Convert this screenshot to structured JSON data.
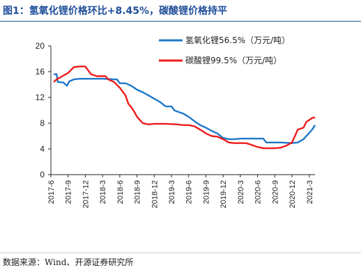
{
  "header": {
    "title": "图1：氢氧化锂价格环比+8.45%，碳酸锂价格持平"
  },
  "footer": {
    "source": "数据来源：Wind、开源证券研究所"
  },
  "chart_data": {
    "type": "line",
    "title": "",
    "xlabel": "",
    "ylabel": "",
    "ylim": [
      0,
      20
    ],
    "yticks": [
      0,
      4,
      8,
      12,
      16,
      20
    ],
    "xticks": [
      "2017-6",
      "2017-9",
      "2017-12",
      "2018-3",
      "2018-6",
      "2018-9",
      "2018-12",
      "2019-3",
      "2019-6",
      "2019-9",
      "2019-12",
      "2020-3",
      "2020-6",
      "2020-9",
      "2020-12",
      "2021-3"
    ],
    "xlim_months": [
      0,
      46
    ],
    "grid": false,
    "legend_position": "top-right",
    "series": [
      {
        "name": "氢氧化锂56.5%（万元/吨）",
        "color": "#1f78c8",
        "points": [
          [
            0.5,
            15.6
          ],
          [
            1.0,
            15.6
          ],
          [
            1.2,
            14.4
          ],
          [
            2.2,
            14.3
          ],
          [
            2.8,
            13.8
          ],
          [
            3.2,
            14.5
          ],
          [
            4.0,
            14.8
          ],
          [
            5.0,
            14.9
          ],
          [
            7.0,
            14.9
          ],
          [
            9.0,
            14.9
          ],
          [
            11.0,
            14.8
          ],
          [
            11.5,
            14.8
          ],
          [
            12.0,
            14.2
          ],
          [
            13.0,
            14.2
          ],
          [
            14.0,
            13.8
          ],
          [
            15.0,
            13.2
          ],
          [
            16.0,
            12.8
          ],
          [
            17.0,
            12.3
          ],
          [
            18.0,
            11.8
          ],
          [
            19.0,
            11.3
          ],
          [
            20.0,
            10.6
          ],
          [
            21.0,
            10.6
          ],
          [
            21.5,
            10.0
          ],
          [
            22.0,
            9.8
          ],
          [
            23.0,
            9.5
          ],
          [
            24.0,
            9.0
          ],
          [
            25.0,
            8.3
          ],
          [
            26.0,
            7.7
          ],
          [
            27.0,
            7.3
          ],
          [
            28.0,
            6.8
          ],
          [
            29.0,
            6.4
          ],
          [
            30.0,
            5.7
          ],
          [
            31.0,
            5.5
          ],
          [
            32.0,
            5.5
          ],
          [
            33.0,
            5.6
          ],
          [
            37.0,
            5.6
          ],
          [
            37.5,
            5.0
          ],
          [
            40.0,
            5.0
          ],
          [
            42.0,
            4.9
          ],
          [
            43.0,
            5.0
          ],
          [
            44.0,
            5.5
          ],
          [
            45.0,
            6.5
          ],
          [
            45.5,
            7.0
          ],
          [
            46.0,
            7.7
          ]
        ]
      },
      {
        "name": "碳酸锂99.5%（万元/吨）",
        "color": "#ee1c1c",
        "points": [
          [
            0.5,
            14.4
          ],
          [
            1.0,
            14.8
          ],
          [
            2.0,
            15.3
          ],
          [
            3.0,
            15.8
          ],
          [
            4.0,
            16.7
          ],
          [
            5.0,
            16.8
          ],
          [
            6.0,
            16.8
          ],
          [
            6.5,
            16.2
          ],
          [
            7.0,
            15.6
          ],
          [
            8.0,
            15.3
          ],
          [
            9.0,
            15.3
          ],
          [
            9.5,
            15.3
          ],
          [
            10.0,
            14.8
          ],
          [
            11.0,
            14.4
          ],
          [
            12.0,
            13.5
          ],
          [
            13.0,
            12.3
          ],
          [
            13.5,
            11.0
          ],
          [
            14.0,
            10.5
          ],
          [
            14.5,
            9.8
          ],
          [
            15.0,
            9.0
          ],
          [
            15.5,
            8.5
          ],
          [
            16.0,
            8.0
          ],
          [
            17.0,
            7.8
          ],
          [
            18.0,
            7.9
          ],
          [
            20.0,
            7.9
          ],
          [
            22.0,
            7.8
          ],
          [
            23.0,
            7.7
          ],
          [
            24.0,
            7.7
          ],
          [
            25.0,
            7.5
          ],
          [
            26.0,
            7.0
          ],
          [
            27.0,
            6.4
          ],
          [
            28.0,
            6.0
          ],
          [
            29.0,
            5.9
          ],
          [
            30.0,
            5.5
          ],
          [
            31.0,
            5.0
          ],
          [
            32.0,
            4.9
          ],
          [
            34.0,
            4.9
          ],
          [
            35.0,
            4.6
          ],
          [
            36.0,
            4.3
          ],
          [
            37.0,
            4.1
          ],
          [
            39.0,
            4.1
          ],
          [
            40.0,
            4.2
          ],
          [
            41.0,
            4.5
          ],
          [
            42.0,
            5.0
          ],
          [
            42.5,
            6.0
          ],
          [
            43.0,
            7.0
          ],
          [
            44.0,
            7.3
          ],
          [
            44.5,
            8.2
          ],
          [
            45.5,
            8.8
          ],
          [
            46.0,
            8.9
          ]
        ]
      }
    ]
  }
}
